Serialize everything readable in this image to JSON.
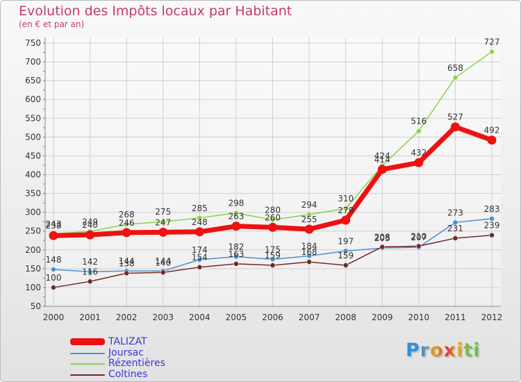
{
  "chart_data": {
    "type": "line",
    "title": "Evolution des Impôts locaux par Habitant",
    "subtitle": "(en € et par an)",
    "xlabel": "",
    "ylabel": "",
    "categories": [
      "2000",
      "2001",
      "2002",
      "2003",
      "2004",
      "2005",
      "2006",
      "2007",
      "2008",
      "2009",
      "2010",
      "2011",
      "2012"
    ],
    "ylim": [
      50,
      750
    ],
    "yticks": [
      50,
      100,
      150,
      200,
      250,
      300,
      350,
      400,
      450,
      500,
      550,
      600,
      650,
      700,
      750
    ],
    "grid": true,
    "legend_position": "bottom-left",
    "series": [
      {
        "name": "TALIZAT",
        "color": "#ee1111",
        "values": [
          238,
          240,
          246,
          247,
          248,
          263,
          260,
          255,
          279,
          414,
          432,
          527,
          492
        ]
      },
      {
        "name": "Joursac",
        "color": "#4a8fd0",
        "values": [
          148,
          142,
          144,
          144,
          174,
          182,
          175,
          184,
          197,
          205,
          207,
          273,
          283
        ]
      },
      {
        "name": "Rézentières",
        "color": "#8ad24a",
        "values": [
          243,
          249,
          268,
          275,
          285,
          298,
          280,
          294,
          310,
          424,
          516,
          658,
          727
        ]
      },
      {
        "name": "Coltines",
        "color": "#6e2a2a",
        "values": [
          100,
          116,
          138,
          140,
          154,
          163,
          159,
          168,
          159,
          208,
          210,
          231,
          239
        ]
      }
    ]
  },
  "branding": {
    "logo_text": "Proxiti"
  }
}
